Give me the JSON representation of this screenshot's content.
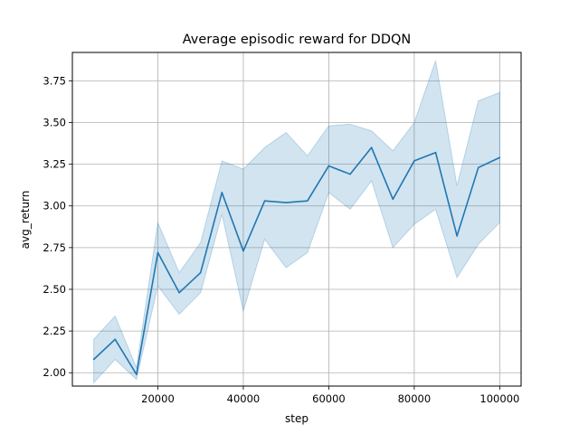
{
  "chart_data": {
    "type": "line",
    "title": "Average episodic reward for DDQN",
    "xlabel": "step",
    "ylabel": "avg_return",
    "xlim": [
      0,
      105000
    ],
    "ylim": [
      1.92,
      3.92
    ],
    "grid": true,
    "x_ticks": [
      20000,
      40000,
      60000,
      80000,
      100000
    ],
    "x_tick_labels": [
      "20000",
      "40000",
      "60000",
      "80000",
      "100000"
    ],
    "y_ticks": [
      2.0,
      2.25,
      2.5,
      2.75,
      3.0,
      3.25,
      3.5,
      3.75
    ],
    "y_tick_labels": [
      "2.00",
      "2.25",
      "2.50",
      "2.75",
      "3.00",
      "3.25",
      "3.50",
      "3.75"
    ],
    "series": [
      {
        "color": "#1f77b4",
        "band_color": "#1f77b4",
        "x": [
          5000,
          10000,
          15000,
          20000,
          25000,
          30000,
          35000,
          40000,
          45000,
          50000,
          55000,
          60000,
          65000,
          70000,
          75000,
          80000,
          85000,
          90000,
          95000,
          100000
        ],
        "values": [
          2.08,
          2.2,
          1.99,
          2.72,
          2.48,
          2.6,
          3.08,
          2.73,
          3.03,
          3.02,
          3.03,
          3.24,
          3.19,
          3.35,
          3.04,
          3.27,
          3.32,
          2.82,
          3.23,
          3.29
        ],
        "lower": [
          1.94,
          2.08,
          1.96,
          2.52,
          2.35,
          2.48,
          2.95,
          2.37,
          2.8,
          2.63,
          2.72,
          3.08,
          2.98,
          3.15,
          2.75,
          2.89,
          2.98,
          2.57,
          2.77,
          2.9
        ],
        "upper": [
          2.2,
          2.34,
          2.03,
          2.9,
          2.6,
          2.78,
          3.27,
          3.22,
          3.35,
          3.44,
          3.3,
          3.48,
          3.49,
          3.45,
          3.33,
          3.5,
          3.87,
          3.12,
          3.63,
          3.68
        ]
      }
    ]
  }
}
